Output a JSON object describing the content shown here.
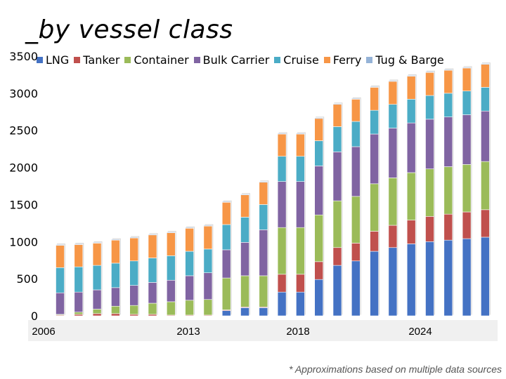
{
  "chart_data": {
    "type": "bar",
    "stacked": true,
    "title": "_by vessel class",
    "xlabel": "",
    "ylabel": "",
    "ylim": [
      0,
      3500
    ],
    "yticks": [
      0,
      500,
      1000,
      1500,
      2000,
      2500,
      3000,
      3500
    ],
    "x_tick_labels": [
      "2006",
      "2013",
      "2018",
      "2024"
    ],
    "categories": [
      "2006",
      "2007",
      "2008",
      "2009",
      "2010",
      "2011",
      "2012",
      "2013",
      "2014",
      "2015",
      "2016",
      "2017",
      "2018",
      "2019",
      "2020",
      "2021",
      "2022",
      "2023",
      "2024",
      "2025",
      "2026",
      "2027",
      "2028",
      "2029"
    ],
    "series": [
      {
        "name": "LNG",
        "color": "#4472C4",
        "values": [
          0,
          0,
          0,
          0,
          0,
          0,
          0,
          0,
          0,
          70,
          110,
          110,
          320,
          320,
          490,
          680,
          740,
          870,
          920,
          970,
          1000,
          1020,
          1040,
          1060
        ]
      },
      {
        "name": "Tanker",
        "color": "#C0504D",
        "values": [
          10,
          20,
          30,
          30,
          20,
          20,
          10,
          10,
          10,
          10,
          10,
          10,
          240,
          240,
          240,
          240,
          240,
          270,
          300,
          320,
          340,
          350,
          360,
          370
        ]
      },
      {
        "name": "Container",
        "color": "#9BBB59",
        "values": [
          10,
          30,
          60,
          100,
          120,
          150,
          180,
          200,
          210,
          430,
          420,
          420,
          630,
          630,
          630,
          630,
          630,
          640,
          640,
          640,
          640,
          640,
          640,
          650
        ]
      },
      {
        "name": "Bulk Carrier",
        "color": "#8064A2",
        "values": [
          290,
          270,
          260,
          250,
          270,
          280,
          290,
          330,
          360,
          380,
          450,
          620,
          620,
          620,
          660,
          660,
          670,
          670,
          670,
          670,
          670,
          670,
          670,
          680
        ]
      },
      {
        "name": "Cruise",
        "color": "#4BACC6",
        "values": [
          340,
          340,
          330,
          330,
          330,
          330,
          330,
          330,
          320,
          340,
          340,
          340,
          340,
          340,
          340,
          340,
          340,
          320,
          320,
          320,
          320,
          320,
          320,
          320
        ]
      },
      {
        "name": "Ferry",
        "color": "#F79646",
        "values": [
          300,
          300,
          300,
          310,
          310,
          310,
          310,
          310,
          310,
          300,
          300,
          300,
          300,
          300,
          300,
          300,
          300,
          310,
          310,
          310,
          310,
          310,
          310,
          310
        ]
      },
      {
        "name": "Tug & Barge",
        "color": "#95B3D7",
        "values": [
          10,
          10,
          10,
          10,
          10,
          10,
          10,
          10,
          10,
          10,
          10,
          10,
          10,
          10,
          10,
          10,
          10,
          10,
          10,
          10,
          10,
          10,
          10,
          10
        ]
      }
    ],
    "legend_position": "top",
    "grid": false,
    "footnote": "* Approximations based on multiple data sources"
  }
}
